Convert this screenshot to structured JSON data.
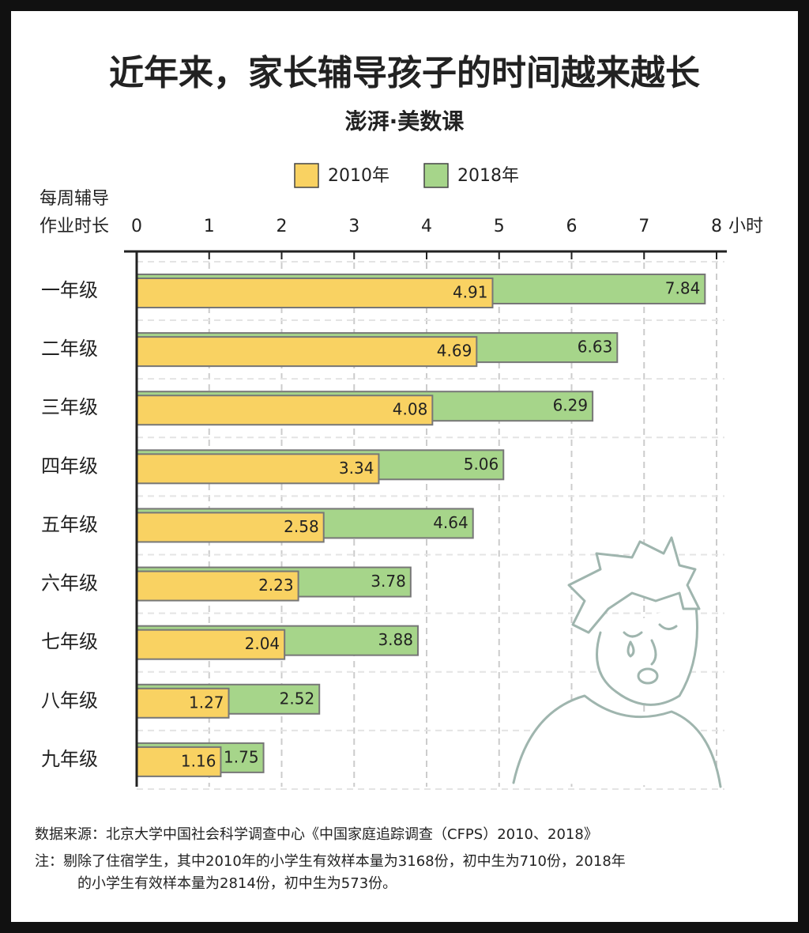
{
  "chart_data": {
    "type": "bar",
    "orientation": "horizontal",
    "overlap": true,
    "title": "近年来，家长辅导孩子的时间越来越长",
    "subtitle": "澎湃·美数课",
    "ylabel": [
      "每周辅导",
      "作业时长"
    ],
    "xunit": "小时",
    "categories": [
      "一年级",
      "二年级",
      "三年级",
      "四年级",
      "五年级",
      "六年级",
      "七年级",
      "八年级",
      "九年级"
    ],
    "series": [
      {
        "name": "2010年",
        "color": "#f9d262",
        "values": [
          4.91,
          4.69,
          4.08,
          3.34,
          2.58,
          2.23,
          2.04,
          1.27,
          1.16
        ]
      },
      {
        "name": "2018年",
        "color": "#a6d58a",
        "values": [
          7.84,
          6.63,
          6.29,
          5.06,
          4.64,
          3.78,
          3.88,
          2.52,
          1.75
        ]
      }
    ],
    "xlim": [
      0,
      8
    ],
    "xticks": [
      0,
      1,
      2,
      3,
      4,
      5,
      6,
      7,
      8
    ],
    "grid": true,
    "legend": "top",
    "source": "数据来源：北京大学中国社会科学调查中心《中国家庭追踪调查（CFPS）2010、2018》",
    "note": [
      "注：剔除了住宿学生，其中2010年的小学生有效样本量为3168份，初中生为710份，2018年",
      "的小学生有效样本量为2814份，初中生为573份。"
    ]
  }
}
